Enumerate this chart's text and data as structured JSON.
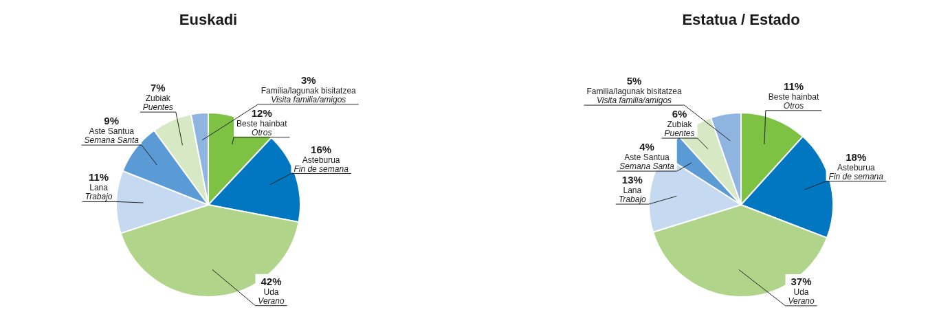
{
  "chart_data": [
    {
      "type": "pie",
      "title": "Euskadi",
      "categories": [
        "Beste hainbat\nOtros",
        "Asteburua\nFin de semana",
        "Uda\nVerano",
        "Lana\nTrabajo",
        "Aste Santua\nSemana Santa",
        "Zubiak\nPuentes",
        "Familia/lagunak bisitatzea\nVisita familia/amigos"
      ],
      "values": [
        12,
        16,
        42,
        11,
        9,
        7,
        3
      ],
      "value_labels": [
        "12%",
        "16%",
        "42%",
        "11%",
        "9%",
        "7%",
        "3%"
      ],
      "colors": [
        "#7dc242",
        "#0077c0",
        "#b0d58a",
        "#c5d9f0",
        "#5b9bd5",
        "#d6e8c4",
        "#8fb4e0"
      ]
    },
    {
      "type": "pie",
      "title": "Estatua / Estado",
      "categories": [
        "Beste hainbat\nOtros",
        "Asteburua\nFin de semana",
        "Uda\nVerano",
        "Lana\nTrabajo",
        "Aste Santua\nSemana Santa",
        "Zubiak\nPuentes",
        "Familia/lagunak bisitatzea\nVisita familia/amigos"
      ],
      "values": [
        11,
        18,
        37,
        13,
        4,
        6,
        5
      ],
      "value_labels": [
        "11%",
        "18%",
        "37%",
        "13%",
        "4%",
        "6%",
        "5%"
      ],
      "colors": [
        "#7dc242",
        "#0077c0",
        "#b0d58a",
        "#c5d9f0",
        "#5b9bd5",
        "#d6e8c4",
        "#8fb4e0"
      ]
    }
  ]
}
